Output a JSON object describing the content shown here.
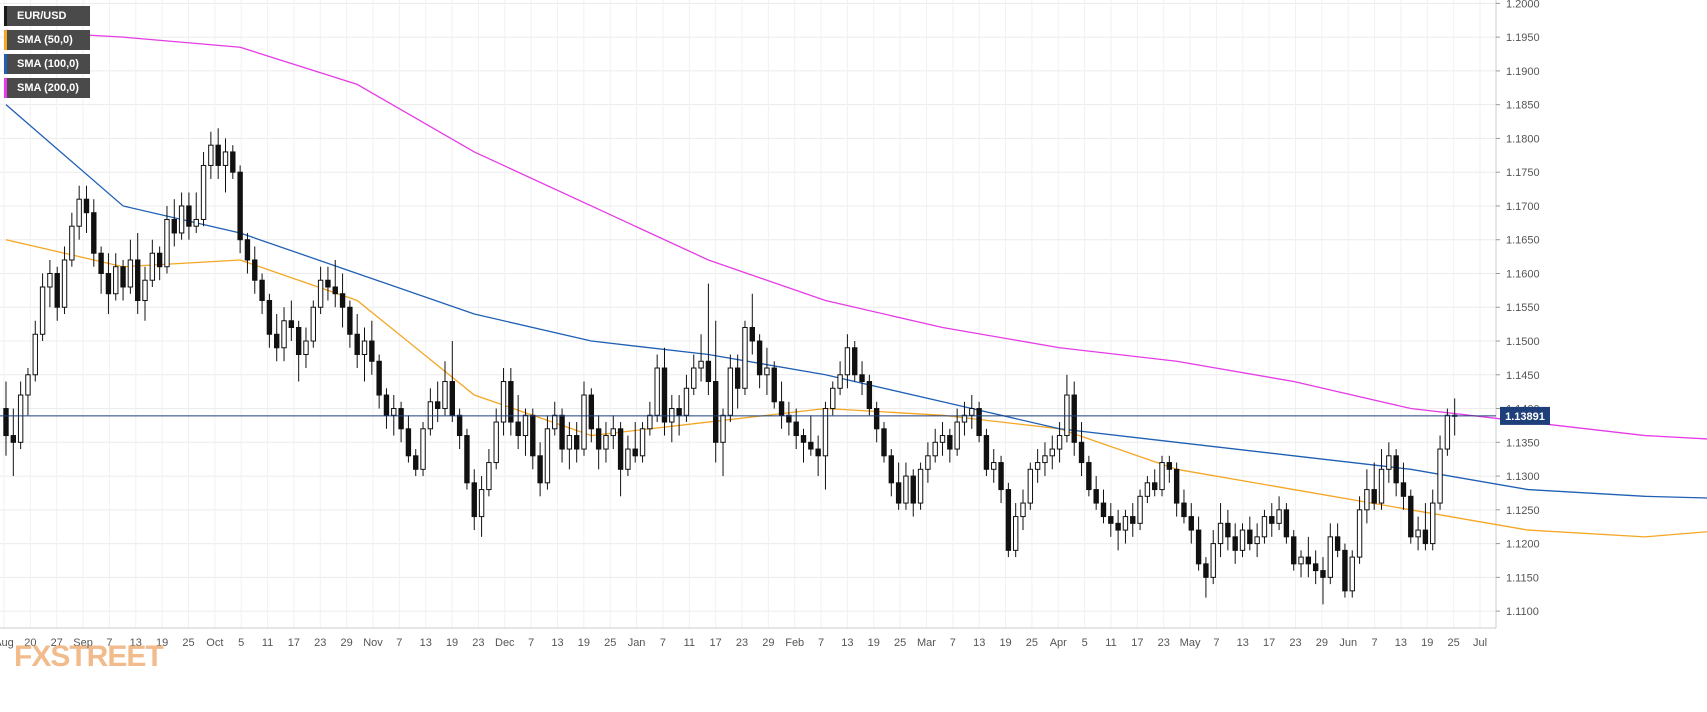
{
  "legend": [
    {
      "label": "EUR/USD",
      "color": "#1a1a1a"
    },
    {
      "label": "SMA (50,0)",
      "color": "#f5a623"
    },
    {
      "label": "SMA (100,0)",
      "color": "#1f5fb4"
    },
    {
      "label": "SMA (200,0)",
      "color": "#e63be6"
    }
  ],
  "logo": {
    "text": "FXSTREET"
  },
  "chart_data": {
    "type": "candlestick",
    "symbol": "EUR/USD",
    "timeframe": "daily",
    "ylim": [
      1.1075,
      1.2005
    ],
    "y_ticks": [
      "1.2000",
      "1.1950",
      "1.1900",
      "1.1850",
      "1.1800",
      "1.1750",
      "1.1700",
      "1.1650",
      "1.1600",
      "1.1550",
      "1.1500",
      "1.1450",
      "1.1400",
      "1.1350",
      "1.1300",
      "1.1250",
      "1.1200",
      "1.1150",
      "1.1100"
    ],
    "x_ticks": [
      "Aug",
      "20",
      "27",
      "Sep",
      "7",
      "13",
      "19",
      "25",
      "Oct",
      "5",
      "11",
      "17",
      "23",
      "29",
      "Nov",
      "7",
      "13",
      "19",
      "23",
      "Dec",
      "7",
      "13",
      "19",
      "25",
      "Jan",
      "7",
      "11",
      "17",
      "23",
      "29",
      "Feb",
      "7",
      "13",
      "19",
      "25",
      "Mar",
      "7",
      "13",
      "19",
      "25",
      "Apr",
      "5",
      "11",
      "17",
      "23",
      "May",
      "7",
      "13",
      "17",
      "23",
      "29",
      "Jun",
      "7",
      "13",
      "19",
      "25",
      "Jul"
    ],
    "current_price": 1.13891,
    "current_price_label": "1.13891",
    "grid": true,
    "candles_ohlc": [
      [
        1.14,
        1.144,
        1.133,
        1.136
      ],
      [
        1.136,
        1.14,
        1.13,
        1.135
      ],
      [
        1.135,
        1.144,
        1.134,
        1.142
      ],
      [
        1.142,
        1.146,
        1.139,
        1.145
      ],
      [
        1.145,
        1.153,
        1.144,
        1.151
      ],
      [
        1.151,
        1.16,
        1.15,
        1.158
      ],
      [
        1.158,
        1.162,
        1.155,
        1.16
      ],
      [
        1.16,
        1.161,
        1.153,
        1.155
      ],
      [
        1.155,
        1.164,
        1.154,
        1.162
      ],
      [
        1.162,
        1.169,
        1.161,
        1.167
      ],
      [
        1.167,
        1.173,
        1.165,
        1.171
      ],
      [
        1.171,
        1.173,
        1.166,
        1.169
      ],
      [
        1.169,
        1.171,
        1.161,
        1.163
      ],
      [
        1.163,
        1.164,
        1.157,
        1.16
      ],
      [
        1.16,
        1.163,
        1.154,
        1.157
      ],
      [
        1.157,
        1.163,
        1.156,
        1.161
      ],
      [
        1.161,
        1.162,
        1.156,
        1.158
      ],
      [
        1.158,
        1.165,
        1.157,
        1.162
      ],
      [
        1.162,
        1.166,
        1.154,
        1.156
      ],
      [
        1.156,
        1.161,
        1.153,
        1.159
      ],
      [
        1.159,
        1.165,
        1.158,
        1.163
      ],
      [
        1.163,
        1.164,
        1.159,
        1.161
      ],
      [
        1.161,
        1.17,
        1.16,
        1.168
      ],
      [
        1.168,
        1.171,
        1.164,
        1.166
      ],
      [
        1.166,
        1.172,
        1.165,
        1.17
      ],
      [
        1.17,
        1.172,
        1.165,
        1.167
      ],
      [
        1.167,
        1.172,
        1.166,
        1.168
      ],
      [
        1.168,
        1.178,
        1.167,
        1.176
      ],
      [
        1.176,
        1.181,
        1.174,
        1.179
      ],
      [
        1.179,
        1.1815,
        1.174,
        1.176
      ],
      [
        1.176,
        1.18,
        1.172,
        1.178
      ],
      [
        1.178,
        1.179,
        1.174,
        1.175
      ],
      [
        1.175,
        1.176,
        1.163,
        1.165
      ],
      [
        1.165,
        1.166,
        1.16,
        1.162
      ],
      [
        1.162,
        1.164,
        1.157,
        1.159
      ],
      [
        1.159,
        1.16,
        1.154,
        1.156
      ],
      [
        1.156,
        1.157,
        1.149,
        1.151
      ],
      [
        1.151,
        1.154,
        1.147,
        1.149
      ],
      [
        1.149,
        1.155,
        1.147,
        1.153
      ],
      [
        1.153,
        1.156,
        1.15,
        1.152
      ],
      [
        1.152,
        1.153,
        1.144,
        1.148
      ],
      [
        1.148,
        1.152,
        1.146,
        1.15
      ],
      [
        1.15,
        1.156,
        1.149,
        1.155
      ],
      [
        1.155,
        1.161,
        1.154,
        1.159
      ],
      [
        1.159,
        1.161,
        1.156,
        1.158
      ],
      [
        1.158,
        1.162,
        1.155,
        1.157
      ],
      [
        1.157,
        1.16,
        1.152,
        1.155
      ],
      [
        1.155,
        1.156,
        1.149,
        1.151
      ],
      [
        1.151,
        1.154,
        1.146,
        1.148
      ],
      [
        1.148,
        1.152,
        1.144,
        1.15
      ],
      [
        1.15,
        1.153,
        1.145,
        1.147
      ],
      [
        1.147,
        1.148,
        1.14,
        1.142
      ],
      [
        1.142,
        1.143,
        1.137,
        1.139
      ],
      [
        1.139,
        1.142,
        1.136,
        1.14
      ],
      [
        1.14,
        1.141,
        1.135,
        1.137
      ],
      [
        1.137,
        1.139,
        1.132,
        1.133
      ],
      [
        1.133,
        1.134,
        1.13,
        1.131
      ],
      [
        1.131,
        1.138,
        1.13,
        1.137
      ],
      [
        1.137,
        1.143,
        1.136,
        1.141
      ],
      [
        1.141,
        1.144,
        1.138,
        1.14
      ],
      [
        1.14,
        1.147,
        1.139,
        1.144
      ],
      [
        1.144,
        1.15,
        1.138,
        1.139
      ],
      [
        1.139,
        1.14,
        1.134,
        1.136
      ],
      [
        1.136,
        1.137,
        1.128,
        1.129
      ],
      [
        1.129,
        1.131,
        1.122,
        1.124
      ],
      [
        1.124,
        1.13,
        1.121,
        1.128
      ],
      [
        1.128,
        1.134,
        1.127,
        1.132
      ],
      [
        1.132,
        1.14,
        1.131,
        1.138
      ],
      [
        1.138,
        1.146,
        1.136,
        1.144
      ],
      [
        1.144,
        1.146,
        1.136,
        1.138
      ],
      [
        1.138,
        1.142,
        1.134,
        1.136
      ],
      [
        1.136,
        1.14,
        1.133,
        1.139
      ],
      [
        1.139,
        1.14,
        1.131,
        1.133
      ],
      [
        1.133,
        1.135,
        1.127,
        1.129
      ],
      [
        1.129,
        1.139,
        1.128,
        1.137
      ],
      [
        1.137,
        1.141,
        1.136,
        1.139
      ],
      [
        1.139,
        1.14,
        1.132,
        1.134
      ],
      [
        1.134,
        1.138,
        1.131,
        1.136
      ],
      [
        1.136,
        1.138,
        1.132,
        1.134
      ],
      [
        1.134,
        1.144,
        1.133,
        1.142
      ],
      [
        1.142,
        1.143,
        1.135,
        1.137
      ],
      [
        1.137,
        1.139,
        1.131,
        1.134
      ],
      [
        1.134,
        1.138,
        1.132,
        1.136
      ],
      [
        1.136,
        1.139,
        1.134,
        1.137
      ],
      [
        1.137,
        1.138,
        1.127,
        1.131
      ],
      [
        1.131,
        1.136,
        1.13,
        1.134
      ],
      [
        1.134,
        1.138,
        1.132,
        1.133
      ],
      [
        1.133,
        1.138,
        1.132,
        1.137
      ],
      [
        1.137,
        1.141,
        1.136,
        1.139
      ],
      [
        1.139,
        1.148,
        1.138,
        1.146
      ],
      [
        1.146,
        1.149,
        1.136,
        1.138
      ],
      [
        1.138,
        1.142,
        1.135,
        1.14
      ],
      [
        1.14,
        1.142,
        1.136,
        1.139
      ],
      [
        1.139,
        1.145,
        1.138,
        1.143
      ],
      [
        1.143,
        1.148,
        1.142,
        1.146
      ],
      [
        1.146,
        1.151,
        1.144,
        1.147
      ],
      [
        1.147,
        1.1585,
        1.142,
        1.144
      ],
      [
        1.144,
        1.153,
        1.132,
        1.135
      ],
      [
        1.135,
        1.14,
        1.13,
        1.139
      ],
      [
        1.139,
        1.148,
        1.138,
        1.146
      ],
      [
        1.146,
        1.148,
        1.14,
        1.143
      ],
      [
        1.143,
        1.153,
        1.142,
        1.152
      ],
      [
        1.152,
        1.157,
        1.148,
        1.15
      ],
      [
        1.15,
        1.151,
        1.143,
        1.145
      ],
      [
        1.145,
        1.149,
        1.142,
        1.146
      ],
      [
        1.146,
        1.147,
        1.14,
        1.141
      ],
      [
        1.141,
        1.144,
        1.137,
        1.139
      ],
      [
        1.139,
        1.141,
        1.136,
        1.138
      ],
      [
        1.138,
        1.14,
        1.134,
        1.136
      ],
      [
        1.136,
        1.137,
        1.132,
        1.135
      ],
      [
        1.135,
        1.139,
        1.133,
        1.134
      ],
      [
        1.134,
        1.136,
        1.13,
        1.133
      ],
      [
        1.133,
        1.141,
        1.128,
        1.14
      ],
      [
        1.14,
        1.144,
        1.139,
        1.143
      ],
      [
        1.143,
        1.147,
        1.142,
        1.145
      ],
      [
        1.145,
        1.151,
        1.143,
        1.149
      ],
      [
        1.149,
        1.15,
        1.144,
        1.145
      ],
      [
        1.145,
        1.147,
        1.142,
        1.144
      ],
      [
        1.144,
        1.145,
        1.139,
        1.14
      ],
      [
        1.14,
        1.141,
        1.135,
        1.137
      ],
      [
        1.137,
        1.138,
        1.132,
        1.133
      ],
      [
        1.133,
        1.134,
        1.127,
        1.129
      ],
      [
        1.129,
        1.132,
        1.125,
        1.126
      ],
      [
        1.126,
        1.132,
        1.125,
        1.13
      ],
      [
        1.13,
        1.131,
        1.124,
        1.126
      ],
      [
        1.126,
        1.132,
        1.125,
        1.131
      ],
      [
        1.131,
        1.135,
        1.129,
        1.133
      ],
      [
        1.133,
        1.137,
        1.132,
        1.135
      ],
      [
        1.135,
        1.138,
        1.133,
        1.136
      ],
      [
        1.136,
        1.137,
        1.132,
        1.134
      ],
      [
        1.134,
        1.14,
        1.133,
        1.138
      ],
      [
        1.138,
        1.141,
        1.136,
        1.139
      ],
      [
        1.139,
        1.142,
        1.137,
        1.14
      ],
      [
        1.14,
        1.141,
        1.135,
        1.136
      ],
      [
        1.136,
        1.137,
        1.13,
        1.131
      ],
      [
        1.131,
        1.134,
        1.129,
        1.132
      ],
      [
        1.132,
        1.133,
        1.126,
        1.128
      ],
      [
        1.128,
        1.129,
        1.118,
        1.119
      ],
      [
        1.119,
        1.126,
        1.118,
        1.124
      ],
      [
        1.124,
        1.128,
        1.122,
        1.126
      ],
      [
        1.126,
        1.132,
        1.125,
        1.131
      ],
      [
        1.131,
        1.134,
        1.129,
        1.132
      ],
      [
        1.132,
        1.135,
        1.13,
        1.133
      ],
      [
        1.133,
        1.136,
        1.131,
        1.134
      ],
      [
        1.134,
        1.138,
        1.132,
        1.136
      ],
      [
        1.136,
        1.145,
        1.135,
        1.142
      ],
      [
        1.142,
        1.144,
        1.133,
        1.135
      ],
      [
        1.135,
        1.138,
        1.13,
        1.132
      ],
      [
        1.132,
        1.133,
        1.127,
        1.128
      ],
      [
        1.128,
        1.13,
        1.125,
        1.126
      ],
      [
        1.126,
        1.128,
        1.123,
        1.124
      ],
      [
        1.124,
        1.126,
        1.121,
        1.123
      ],
      [
        1.123,
        1.125,
        1.119,
        1.122
      ],
      [
        1.122,
        1.125,
        1.12,
        1.124
      ],
      [
        1.124,
        1.126,
        1.121,
        1.123
      ],
      [
        1.123,
        1.128,
        1.122,
        1.127
      ],
      [
        1.127,
        1.13,
        1.126,
        1.129
      ],
      [
        1.129,
        1.131,
        1.127,
        1.128
      ],
      [
        1.128,
        1.133,
        1.127,
        1.132
      ],
      [
        1.132,
        1.133,
        1.129,
        1.131
      ],
      [
        1.131,
        1.132,
        1.124,
        1.126
      ],
      [
        1.126,
        1.128,
        1.123,
        1.124
      ],
      [
        1.124,
        1.126,
        1.12,
        1.122
      ],
      [
        1.122,
        1.124,
        1.116,
        1.117
      ],
      [
        1.117,
        1.118,
        1.112,
        1.115
      ],
      [
        1.115,
        1.122,
        1.114,
        1.12
      ],
      [
        1.12,
        1.126,
        1.118,
        1.123
      ],
      [
        1.123,
        1.125,
        1.119,
        1.121
      ],
      [
        1.121,
        1.123,
        1.117,
        1.119
      ],
      [
        1.119,
        1.123,
        1.118,
        1.122
      ],
      [
        1.122,
        1.124,
        1.119,
        1.12
      ],
      [
        1.12,
        1.123,
        1.118,
        1.121
      ],
      [
        1.121,
        1.125,
        1.12,
        1.124
      ],
      [
        1.124,
        1.126,
        1.121,
        1.123
      ],
      [
        1.123,
        1.127,
        1.122,
        1.125
      ],
      [
        1.125,
        1.126,
        1.12,
        1.121
      ],
      [
        1.121,
        1.122,
        1.116,
        1.117
      ],
      [
        1.117,
        1.119,
        1.115,
        1.118
      ],
      [
        1.118,
        1.121,
        1.115,
        1.117
      ],
      [
        1.117,
        1.119,
        1.114,
        1.116
      ],
      [
        1.116,
        1.118,
        1.111,
        1.115
      ],
      [
        1.115,
        1.123,
        1.114,
        1.121
      ],
      [
        1.121,
        1.123,
        1.118,
        1.119
      ],
      [
        1.119,
        1.12,
        1.112,
        1.113
      ],
      [
        1.113,
        1.119,
        1.112,
        1.118
      ],
      [
        1.118,
        1.127,
        1.117,
        1.125
      ],
      [
        1.125,
        1.131,
        1.123,
        1.128
      ],
      [
        1.128,
        1.132,
        1.125,
        1.126
      ],
      [
        1.126,
        1.134,
        1.125,
        1.131
      ],
      [
        1.131,
        1.135,
        1.129,
        1.133
      ],
      [
        1.133,
        1.134,
        1.127,
        1.129
      ],
      [
        1.129,
        1.132,
        1.125,
        1.127
      ],
      [
        1.127,
        1.128,
        1.12,
        1.121
      ],
      [
        1.121,
        1.124,
        1.119,
        1.122
      ],
      [
        1.122,
        1.126,
        1.119,
        1.12
      ],
      [
        1.12,
        1.128,
        1.119,
        1.126
      ],
      [
        1.126,
        1.136,
        1.125,
        1.134
      ],
      [
        1.134,
        1.14,
        1.133,
        1.139
      ],
      [
        1.139,
        1.1415,
        1.136,
        1.1389
      ]
    ],
    "sma_50": {
      "label": "SMA (50,0)",
      "x": [
        0,
        16,
        32,
        48,
        64,
        80,
        96,
        112,
        128,
        144,
        160,
        176,
        192,
        208,
        224,
        241
      ],
      "y": [
        1.165,
        1.161,
        1.162,
        1.156,
        1.142,
        1.136,
        1.138,
        1.14,
        1.139,
        1.137,
        1.131,
        1.128,
        1.125,
        1.122,
        1.121,
        1.1225
      ]
    },
    "sma_100": {
      "label": "SMA (100,0)",
      "x": [
        0,
        16,
        32,
        48,
        64,
        80,
        96,
        112,
        128,
        144,
        160,
        176,
        192,
        208,
        224,
        241
      ],
      "y": [
        1.185,
        1.17,
        1.166,
        1.16,
        1.154,
        1.15,
        1.148,
        1.145,
        1.141,
        1.137,
        1.135,
        1.133,
        1.131,
        1.128,
        1.127,
        1.1265
      ]
    },
    "sma_200": {
      "label": "SMA (200,0)",
      "x": [
        0,
        16,
        32,
        48,
        64,
        80,
        96,
        112,
        128,
        144,
        160,
        176,
        192,
        208,
        224,
        241
      ],
      "y": [
        1.196,
        1.195,
        1.1935,
        1.188,
        1.178,
        1.17,
        1.162,
        1.156,
        1.152,
        1.149,
        1.147,
        1.144,
        1.14,
        1.138,
        1.136,
        1.135
      ]
    }
  }
}
